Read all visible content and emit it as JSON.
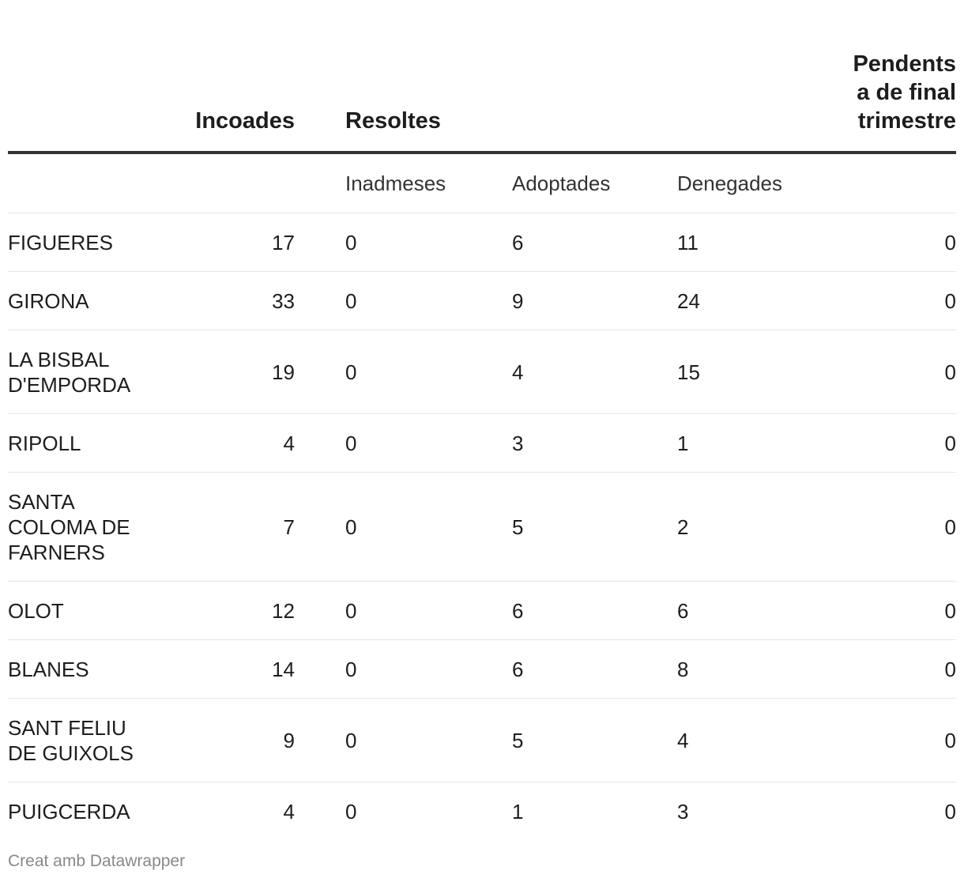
{
  "chart_data": {
    "type": "table",
    "columns": {
      "incoades": "Incoades",
      "resoltes": "Resoltes",
      "pendents": "Pendents a de final trimestre"
    },
    "subcolumns": {
      "inadmeses": "Inadmeses",
      "adoptades": "Adoptades",
      "denegades": "Denegades"
    },
    "rows": [
      {
        "name": "FIGUERES",
        "incoades": 17,
        "inadmeses": 0,
        "adoptades": 6,
        "denegades": 11,
        "pendents": 0
      },
      {
        "name": "GIRONA",
        "incoades": 33,
        "inadmeses": 0,
        "adoptades": 9,
        "denegades": 24,
        "pendents": 0
      },
      {
        "name": "LA BISBAL D'EMPORDA",
        "incoades": 19,
        "inadmeses": 0,
        "adoptades": 4,
        "denegades": 15,
        "pendents": 0
      },
      {
        "name": "RIPOLL",
        "incoades": 4,
        "inadmeses": 0,
        "adoptades": 3,
        "denegades": 1,
        "pendents": 0
      },
      {
        "name": "SANTA COLOMA DE FARNERS",
        "incoades": 7,
        "inadmeses": 0,
        "adoptades": 5,
        "denegades": 2,
        "pendents": 0
      },
      {
        "name": "OLOT",
        "incoades": 12,
        "inadmeses": 0,
        "adoptades": 6,
        "denegades": 6,
        "pendents": 0
      },
      {
        "name": "BLANES",
        "incoades": 14,
        "inadmeses": 0,
        "adoptades": 6,
        "denegades": 8,
        "pendents": 0
      },
      {
        "name": "SANT FELIU DE GUIXOLS",
        "incoades": 9,
        "inadmeses": 0,
        "adoptades": 5,
        "denegades": 4,
        "pendents": 0
      },
      {
        "name": "PUIGCERDA",
        "incoades": 4,
        "inadmeses": 0,
        "adoptades": 1,
        "denegades": 3,
        "pendents": 0
      }
    ]
  },
  "footer": {
    "credit": "Creat amb Datawrapper"
  }
}
